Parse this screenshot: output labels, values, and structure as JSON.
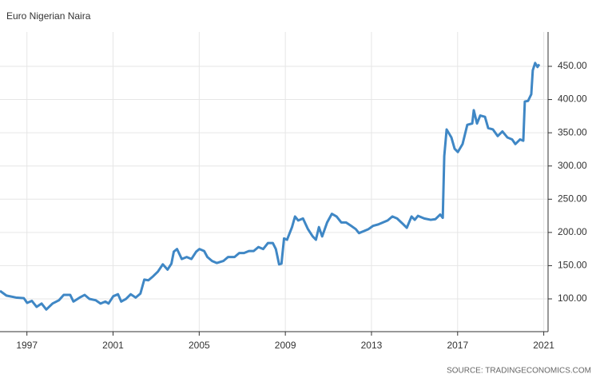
{
  "chart_data": {
    "type": "line",
    "title": "Euro Nigerian Naira",
    "source": "SOURCE: TRADINGECONOMICS.COM",
    "color": "#3f87c5",
    "grid": true,
    "yaxis_side": "right",
    "xlim": [
      1995.75,
      2021.2
    ],
    "xticks": [
      1997,
      2001,
      2005,
      2009,
      2013,
      2017,
      2021
    ],
    "ylim": [
      50.7,
      501.7
    ],
    "yticks": [
      {
        "value": 100,
        "label": "100.00"
      },
      {
        "value": 150,
        "label": "150.00"
      },
      {
        "value": 200,
        "label": "200.00"
      },
      {
        "value": 250,
        "label": "250.00"
      },
      {
        "value": 300,
        "label": "300.00"
      },
      {
        "value": 350,
        "label": "350.00"
      },
      {
        "value": 400,
        "label": "400.00"
      },
      {
        "value": 450,
        "label": "450.00"
      }
    ],
    "x": [
      1995.75,
      1996.05,
      1996.49,
      1996.86,
      1997.01,
      1997.23,
      1997.45,
      1997.68,
      1997.9,
      1998.19,
      1998.49,
      1998.71,
      1999.01,
      1999.16,
      1999.45,
      1999.68,
      1999.9,
      2000.19,
      2000.42,
      2000.64,
      2000.79,
      2001.01,
      2001.23,
      2001.38,
      2001.6,
      2001.82,
      2002.05,
      2002.27,
      2002.45,
      2002.64,
      2002.86,
      2003.08,
      2003.31,
      2003.53,
      2003.71,
      2003.82,
      2003.97,
      2004.19,
      2004.42,
      2004.64,
      2004.86,
      2005.01,
      2005.23,
      2005.38,
      2005.6,
      2005.82,
      2006.12,
      2006.34,
      2006.64,
      2006.86,
      2007.08,
      2007.31,
      2007.53,
      2007.75,
      2007.97,
      2008.19,
      2008.42,
      2008.56,
      2008.71,
      2008.82,
      2008.94,
      2009.08,
      2009.31,
      2009.45,
      2009.6,
      2009.82,
      2010.05,
      2010.27,
      2010.42,
      2010.56,
      2010.71,
      2010.94,
      2011.16,
      2011.38,
      2011.6,
      2011.82,
      2012.05,
      2012.27,
      2012.42,
      2012.64,
      2012.86,
      2013.08,
      2013.31,
      2013.53,
      2013.75,
      2013.97,
      2014.19,
      2014.42,
      2014.64,
      2014.86,
      2015.01,
      2015.16,
      2015.45,
      2015.75,
      2015.97,
      2016.19,
      2016.31,
      2016.38,
      2016.49,
      2016.71,
      2016.86,
      2017.01,
      2017.23,
      2017.45,
      2017.68,
      2017.75,
      2017.9,
      2018.05,
      2018.27,
      2018.42,
      2018.64,
      2018.86,
      2019.08,
      2019.31,
      2019.53,
      2019.68,
      2019.9,
      2020.05,
      2020.12,
      2020.27,
      2020.42,
      2020.49,
      2020.6,
      2020.71,
      2020.79
    ],
    "values": [
      112,
      105,
      102,
      101,
      94,
      97,
      88,
      93,
      84,
      93,
      98,
      106,
      106,
      96,
      102,
      106,
      100,
      98,
      93,
      96,
      93,
      104,
      107,
      96,
      100,
      107,
      102,
      108,
      129,
      128,
      134,
      141,
      152,
      144,
      153,
      171,
      175,
      160,
      163,
      160,
      171,
      175,
      172,
      163,
      157,
      154,
      157,
      163,
      163,
      169,
      169,
      172,
      172,
      178,
      175,
      184,
      184,
      175,
      152,
      153,
      191,
      189,
      208,
      224,
      218,
      221,
      205,
      194,
      189,
      208,
      194,
      215,
      228,
      224,
      215,
      215,
      210,
      205,
      199,
      202,
      205,
      210,
      212,
      215,
      218,
      224,
      221,
      214,
      207,
      224,
      219,
      225,
      221,
      219,
      220,
      227,
      222,
      315,
      355,
      343,
      326,
      321,
      333,
      362,
      364,
      384,
      364,
      376,
      374,
      357,
      355,
      345,
      352,
      343,
      340,
      333,
      340,
      338,
      397,
      398,
      408,
      444,
      455,
      449,
      453
    ]
  }
}
